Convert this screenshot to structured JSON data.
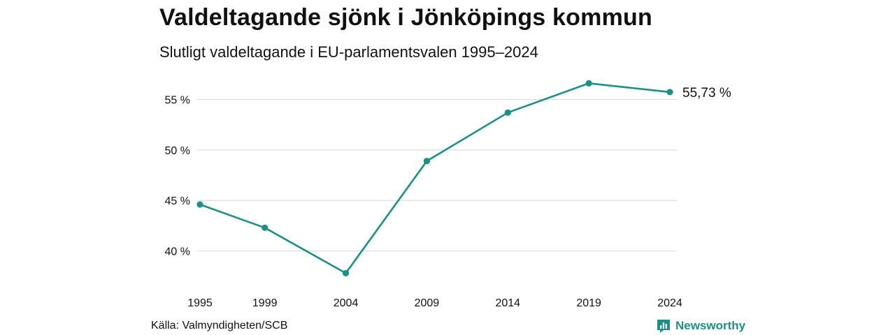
{
  "header": {
    "title": "Valdeltagande sjönk i Jönköpings kommun",
    "subtitle": "Slutligt valdeltagande i EU-parlamentsvalen 1995–2024"
  },
  "footer": {
    "source": "Källa: Valmyndigheten/SCB",
    "brand": "Newsworthy",
    "brand_icon": "bar-chart-logo-icon"
  },
  "colors": {
    "line": "#1a9184",
    "grid": "#dedede",
    "text": "#111111"
  },
  "chart_data": {
    "type": "line",
    "title": "Valdeltagande sjönk i Jönköpings kommun",
    "subtitle": "Slutligt valdeltagande i EU-parlamentsvalen 1995–2024",
    "xlabel": "",
    "ylabel": "",
    "x": [
      1995,
      1999,
      2004,
      2009,
      2014,
      2019,
      2024
    ],
    "series": [
      {
        "values": [
          44.6,
          42.3,
          37.8,
          48.9,
          53.7,
          56.6,
          55.73
        ]
      }
    ],
    "yticks": [
      40,
      45,
      50,
      55
    ],
    "ytick_labels": [
      "40 %",
      "45 %",
      "50 %",
      "55 %"
    ],
    "xtick_labels": [
      "1995",
      "1999",
      "2004",
      "2009",
      "2014",
      "2019",
      "2024"
    ],
    "ylim": [
      37.0,
      56.9
    ],
    "grid": true,
    "end_label": "55,73 %"
  }
}
